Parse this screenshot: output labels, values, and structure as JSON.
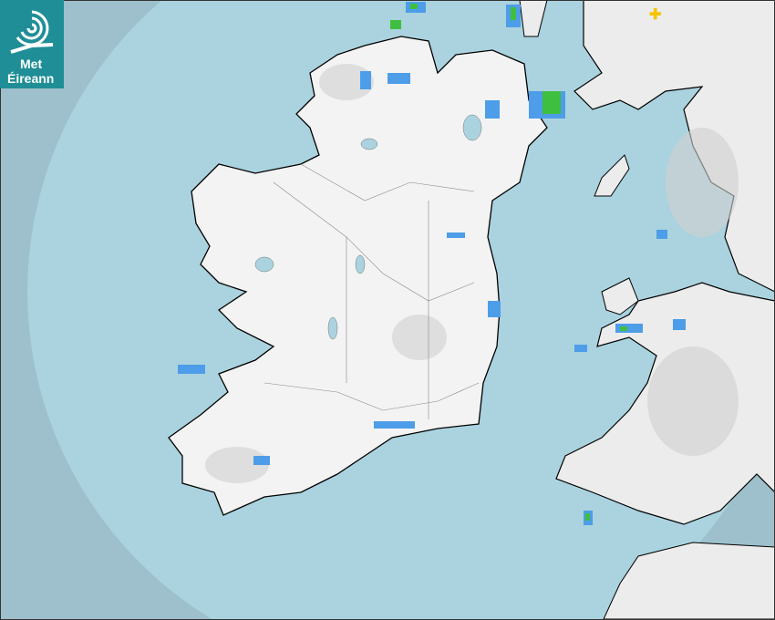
{
  "logo": {
    "line1": "Met",
    "line2": "Éireann"
  },
  "map": {
    "type": "precipitation radar",
    "colors": {
      "sea_outside": "#9dc0cc",
      "sea_radar": "#aad3df",
      "land": "#f2f2f2",
      "relief": "#c8c8c8",
      "rain_light": "#4d9de8",
      "rain_moderate": "#3fbf3f",
      "rain_heavy": "#e6e600",
      "marker": "#f5c400",
      "brand": "#1f8e96"
    }
  }
}
